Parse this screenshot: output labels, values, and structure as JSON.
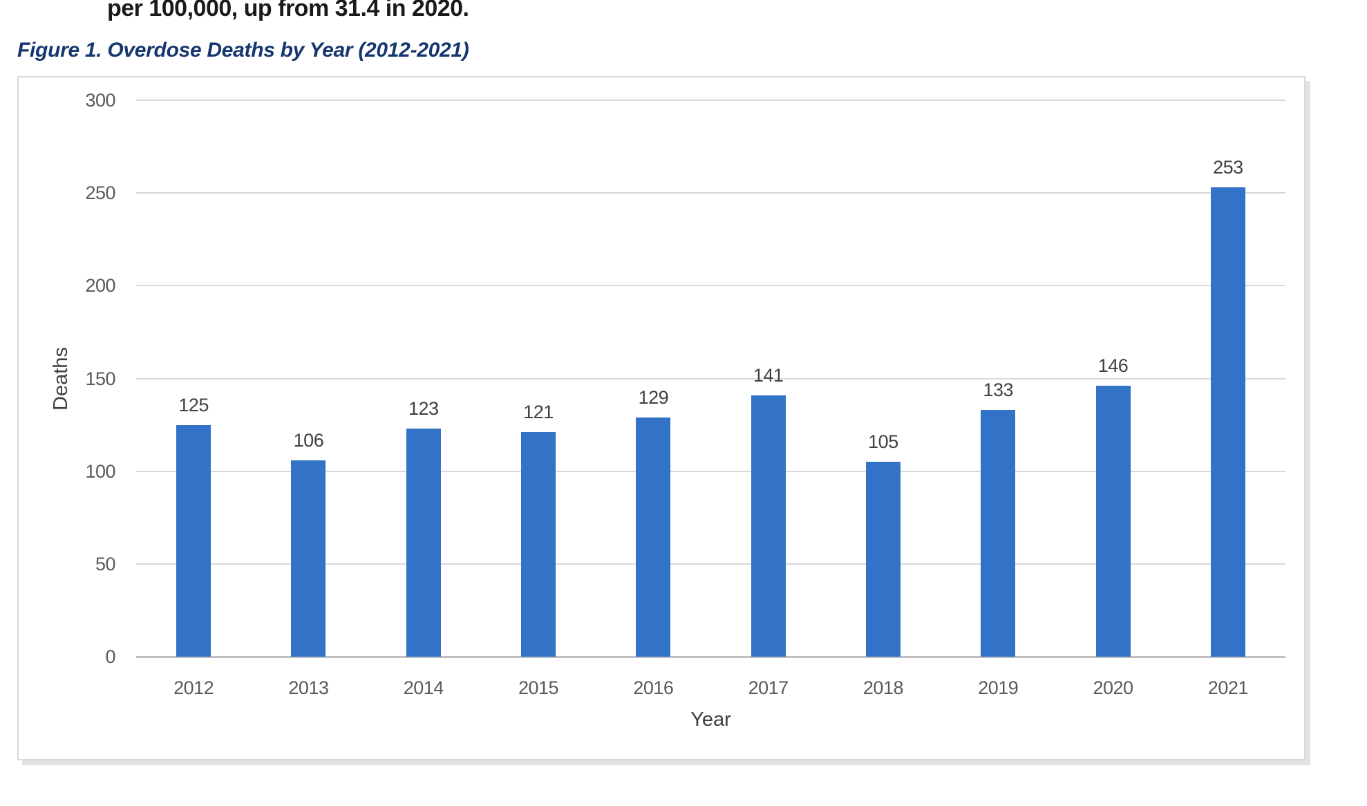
{
  "document": {
    "clipped_paragraph": "per 100,000, up from 31.4 in 2020.",
    "figure_caption": "Figure 1. Overdose Deaths by Year (2012-2021)"
  },
  "colors": {
    "bar": "#3273C8",
    "caption_text": "#16366F",
    "body_text": "#1A1A1A",
    "gridline": "#D9D9D9",
    "axis_line": "#BFBFBF",
    "tick_label": "#595959",
    "data_label": "#404040",
    "frame_border": "#D9D9D9",
    "frame_shadow": "#E3E3E3"
  },
  "chart_data": {
    "type": "bar",
    "title": "Figure 1. Overdose Deaths by Year (2012-2021)",
    "categories": [
      "2012",
      "2013",
      "2014",
      "2015",
      "2016",
      "2017",
      "2018",
      "2019",
      "2020",
      "2021"
    ],
    "values": [
      125,
      106,
      123,
      121,
      129,
      141,
      105,
      133,
      146,
      253
    ],
    "series": [
      {
        "name": "Deaths",
        "values": [
          125,
          106,
          123,
          121,
          129,
          141,
          105,
          133,
          146,
          253
        ]
      }
    ],
    "data_labels_shown": true,
    "xlabel": "Year",
    "ylabel": "Deaths",
    "ylim": [
      0,
      300
    ],
    "yticks": [
      0,
      50,
      100,
      150,
      200,
      250,
      300
    ],
    "grid": "horizontal",
    "legend": "none",
    "bar_color": "#3273C8"
  }
}
